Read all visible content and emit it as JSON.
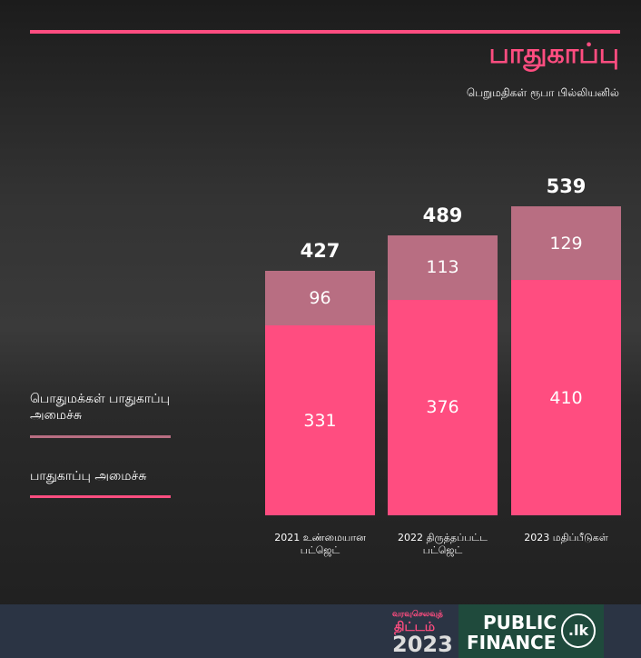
{
  "chart_data": {
    "type": "stacked-bar",
    "title": "பாதுகாப்பு",
    "subtitle": "பெறுமதிகள் ரூபா பில்லியனில்",
    "categories": [
      "2021 உண்மையான பட்ஜெட்",
      "2022 திருத்தப்பட்ட பட்ஜெட்",
      "2023 மதிப்பீடுகள்"
    ],
    "series": [
      {
        "name": "பாதுகாப்பு அமைச்சு",
        "color": "#ff4d80",
        "values": [
          331,
          376,
          410
        ]
      },
      {
        "name": "பொதுமக்கள் பாதுகாப்பு அமைச்சு",
        "color": "#b86e82",
        "values": [
          96,
          113,
          129
        ]
      }
    ],
    "totals": [
      427,
      489,
      539
    ]
  },
  "footer": {
    "logo1_line1": "வரவுசெலவுத்",
    "logo1_line2": "திட்டம்",
    "logo1_year": "2023",
    "logo2_line1": "PUBLIC",
    "logo2_line2": "FINANCE",
    "logo2_badge": ".lk"
  }
}
